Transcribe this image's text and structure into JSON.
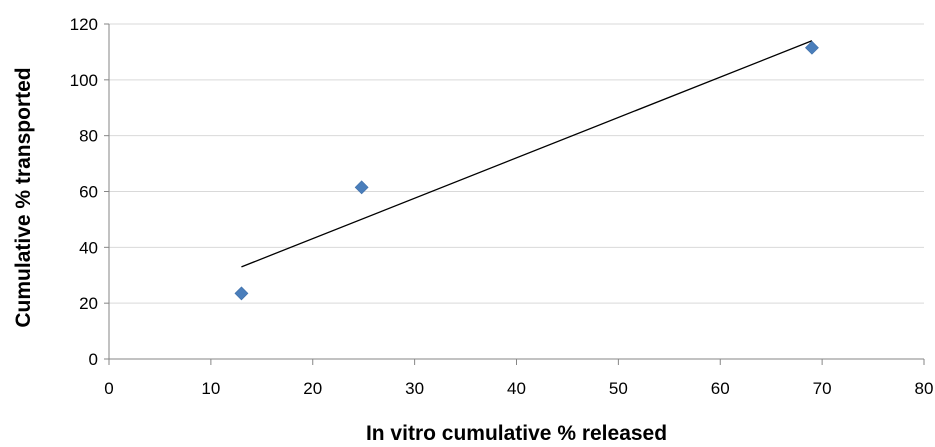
{
  "chart_data": {
    "type": "scatter",
    "title": "",
    "xlabel": "In vitro cumulative % released",
    "ylabel": "Cumulative % transported",
    "xlim": [
      0,
      80
    ],
    "ylim": [
      0,
      120
    ],
    "x_ticks": [
      "0",
      "10",
      "20",
      "30",
      "40",
      "50",
      "60",
      "70",
      "80"
    ],
    "y_ticks": [
      "0",
      "20",
      "40",
      "60",
      "80",
      "100",
      "120"
    ],
    "grid": "horizontal",
    "legend": "none",
    "series": [
      {
        "marker": "diamond",
        "color": "#4a7ebb",
        "points": [
          {
            "x": 13,
            "y": 23.5
          },
          {
            "x": 24.8,
            "y": 61.5
          },
          {
            "x": 69,
            "y": 111.5
          }
        ]
      }
    ],
    "trendline": {
      "type": "linear",
      "color": "#000000",
      "from": {
        "x": 13,
        "y": 33
      },
      "to": {
        "x": 69,
        "y": 114
      }
    }
  }
}
